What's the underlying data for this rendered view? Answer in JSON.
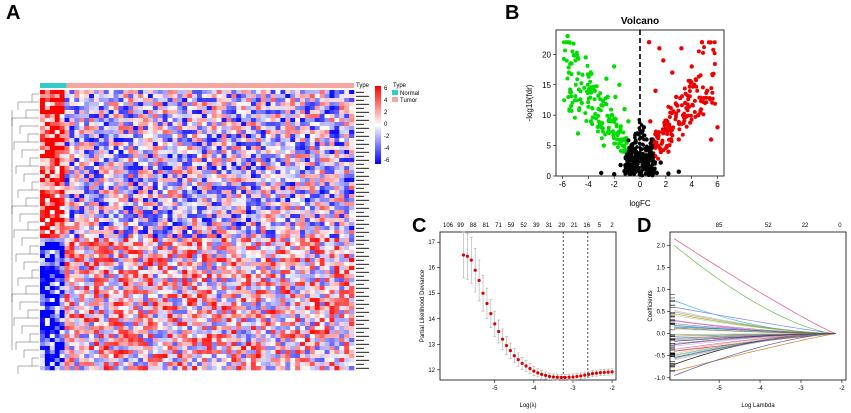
{
  "figure": {
    "panel_labels": [
      "A",
      "B",
      "C",
      "D"
    ]
  },
  "heatmap": {
    "annotation_title": "Type",
    "legend": {
      "title": "Type",
      "items": [
        {
          "label": "Normal",
          "color": "#33cccc"
        },
        {
          "label": "Tumor",
          "color": "#f4a6a0"
        }
      ]
    },
    "color_scale": {
      "ticks": [
        "6",
        "4",
        "2",
        "0",
        "-2",
        "-4",
        "-6"
      ],
      "colors": {
        "high": "#ff0000",
        "mid": "#ffffff",
        "low": "#0000ff"
      }
    },
    "normal_fraction": 0.085
  },
  "chart_data": [
    {
      "panel": "B",
      "type": "scatter",
      "title": "Volcano",
      "xlabel": "logFC",
      "ylabel": "-log10(fdr)",
      "xlim": [
        -6.5,
        6.5
      ],
      "ylim": [
        0,
        24
      ],
      "xticks": [
        -6,
        -4,
        -2,
        0,
        2,
        4,
        6
      ],
      "yticks": [
        0,
        5,
        10,
        15,
        20
      ],
      "threshold_x": 0,
      "series": [
        {
          "name": "down",
          "color": "#00dd00",
          "points": [
            [
              -5.6,
              23
            ],
            [
              -5.5,
              17
            ],
            [
              -4.2,
              19.5
            ],
            [
              -2,
              18
            ],
            [
              -4.5,
              12
            ],
            [
              -3.8,
              9
            ],
            [
              -3,
              8
            ],
            [
              -2.5,
              13
            ],
            [
              -1.6,
              15
            ],
            [
              -1.2,
              11
            ],
            [
              -2.8,
              5
            ],
            [
              -1.8,
              7
            ],
            [
              -3.5,
              14
            ],
            [
              -4.8,
              7
            ],
            [
              -2.2,
              10
            ],
            [
              -1.4,
              6
            ],
            [
              -0.9,
              9
            ],
            [
              -3.2,
              11
            ],
            [
              -2.6,
              16
            ],
            [
              -1.9,
              13
            ]
          ]
        },
        {
          "name": "up",
          "color": "#ee0000",
          "points": [
            [
              0.7,
              22
            ],
            [
              1.5,
              21
            ],
            [
              3.2,
              21
            ],
            [
              4.8,
              22
            ],
            [
              5.2,
              14
            ],
            [
              6,
              8
            ],
            [
              4,
              18
            ],
            [
              2.5,
              17
            ],
            [
              1.2,
              14
            ],
            [
              3.5,
              12
            ],
            [
              2,
              9
            ],
            [
              4.5,
              10
            ],
            [
              1,
              6
            ],
            [
              5.5,
              6
            ],
            [
              3,
              6
            ],
            [
              2.2,
              4
            ],
            [
              0.8,
              9
            ],
            [
              1.8,
              19
            ],
            [
              4.2,
              15
            ],
            [
              2.8,
              13
            ]
          ]
        },
        {
          "name": "ns",
          "color": "#000000",
          "points": [
            [
              -0.5,
              1
            ],
            [
              0.4,
              1.5
            ],
            [
              -1.2,
              0.8
            ],
            [
              1.3,
              0.5
            ],
            [
              -0.8,
              2.5
            ],
            [
              0.6,
              3
            ],
            [
              -0.3,
              4
            ],
            [
              0.2,
              2
            ],
            [
              -2,
              0.3
            ],
            [
              2.2,
              0.4
            ],
            [
              -1.5,
              1.8
            ],
            [
              1.6,
              2.2
            ],
            [
              0,
              0.6
            ],
            [
              -0.6,
              5
            ],
            [
              0.5,
              6
            ],
            [
              -3,
              0.5
            ],
            [
              3,
              0.7
            ],
            [
              -0.2,
              7
            ],
            [
              0.3,
              8
            ],
            [
              -1,
              3.5
            ]
          ]
        }
      ]
    },
    {
      "panel": "C",
      "type": "line",
      "xlabel": "Log(λ)",
      "ylabel": "Partial Likelihood Deviance",
      "xlim": [
        -6.4,
        -1.9
      ],
      "ylim": [
        11.6,
        17.4
      ],
      "xticks": [
        -5,
        -4,
        -3,
        -2
      ],
      "yticks": [
        12,
        13,
        14,
        15,
        16,
        17
      ],
      "top_ticks": [
        "106",
        "99",
        "88",
        "81",
        "71",
        "59",
        "52",
        "39",
        "31",
        "29",
        "21",
        "16",
        "5",
        "2"
      ],
      "vlines": [
        -3.25,
        -2.62
      ],
      "x": [
        -5.8,
        -5.7,
        -5.6,
        -5.5,
        -5.4,
        -5.3,
        -5.2,
        -5.1,
        -5.0,
        -4.9,
        -4.8,
        -4.7,
        -4.6,
        -4.5,
        -4.4,
        -4.3,
        -4.2,
        -4.1,
        -4.0,
        -3.9,
        -3.8,
        -3.7,
        -3.6,
        -3.5,
        -3.4,
        -3.3,
        -3.2,
        -3.1,
        -3.0,
        -2.9,
        -2.8,
        -2.7,
        -2.6,
        -2.5,
        -2.4,
        -2.3,
        -2.2,
        -2.1,
        -2.0
      ],
      "values": [
        16.5,
        16.45,
        16.3,
        15.9,
        15.5,
        15.0,
        14.6,
        14.2,
        13.8,
        13.5,
        13.2,
        12.95,
        12.75,
        12.55,
        12.4,
        12.25,
        12.15,
        12.05,
        11.95,
        11.88,
        11.82,
        11.78,
        11.74,
        11.72,
        11.71,
        11.7,
        11.7,
        11.71,
        11.72,
        11.74,
        11.76,
        11.79,
        11.82,
        11.85,
        11.87,
        11.89,
        11.9,
        11.91,
        11.92
      ],
      "error": [
        0.9,
        0.9,
        0.9,
        0.85,
        0.8,
        0.7,
        0.6,
        0.55,
        0.5,
        0.45,
        0.4,
        0.35,
        0.3,
        0.28,
        0.26,
        0.24,
        0.22,
        0.2,
        0.18,
        0.16,
        0.15,
        0.14,
        0.13,
        0.12,
        0.12,
        0.12,
        0.12,
        0.12,
        0.12,
        0.12,
        0.12,
        0.12,
        0.12,
        0.12,
        0.12,
        0.12,
        0.12,
        0.12,
        0.12
      ]
    },
    {
      "panel": "D",
      "type": "line",
      "xlabel": "Log Lambda",
      "ylabel": "Coefficients",
      "xlim": [
        -6.2,
        -1.9
      ],
      "ylim": [
        -1.05,
        2.3
      ],
      "xticks": [
        -5,
        -4,
        -3,
        -2
      ],
      "yticks": [
        -1.0,
        -0.5,
        0.0,
        0.5,
        1.0,
        1.5,
        2.0
      ],
      "top_ticks": [
        "85",
        "52",
        "22",
        "0"
      ],
      "series": [
        {
          "name": "path1",
          "start": 2.15,
          "end": 0
        },
        {
          "name": "path2",
          "start": 2.0,
          "end": 0
        },
        {
          "name": "path3",
          "start": 0.75,
          "end": 0
        },
        {
          "name": "path4",
          "start": 0.6,
          "end": 0
        },
        {
          "name": "path5",
          "start": 0.45,
          "end": 0
        },
        {
          "name": "path6",
          "start": 0.3,
          "end": 0
        },
        {
          "name": "path7",
          "start": 0.15,
          "end": 0
        },
        {
          "name": "path8",
          "start": -0.1,
          "end": 0
        },
        {
          "name": "path9",
          "start": -0.25,
          "end": 0
        },
        {
          "name": "path10",
          "start": -0.4,
          "end": 0
        },
        {
          "name": "path11",
          "start": -0.55,
          "end": 0
        },
        {
          "name": "path12",
          "start": -0.7,
          "end": 0
        },
        {
          "name": "path13",
          "start": -0.85,
          "end": 0
        },
        {
          "name": "path14",
          "start": -0.95,
          "end": 0
        }
      ]
    }
  ]
}
